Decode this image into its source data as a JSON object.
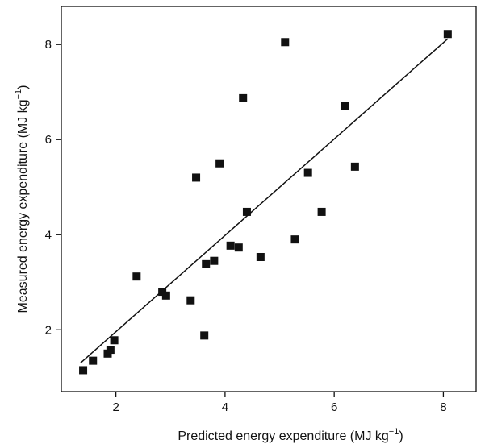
{
  "chart_data": {
    "type": "scatter",
    "title": "",
    "xlabel": "Predicted energy expenditure (MJ kg",
    "xlabel_sup": "−1",
    "xlabel_tail": ")",
    "ylabel": "Measured energy expenditure (MJ kg",
    "ylabel_sup": "−1",
    "ylabel_tail": ")",
    "xlim": [
      1.0,
      8.6
    ],
    "ylim": [
      0.7,
      8.8
    ],
    "xticks": [
      2,
      4,
      6,
      8
    ],
    "yticks": [
      2,
      4,
      6,
      8
    ],
    "grid": false,
    "marker": "square",
    "colors": {
      "marker": "#111111",
      "line": "#111111",
      "axis": "#111111"
    },
    "points": [
      {
        "x": 1.4,
        "y": 1.15
      },
      {
        "x": 1.58,
        "y": 1.35
      },
      {
        "x": 1.85,
        "y": 1.5
      },
      {
        "x": 1.9,
        "y": 1.58
      },
      {
        "x": 1.97,
        "y": 1.78
      },
      {
        "x": 2.38,
        "y": 3.12
      },
      {
        "x": 2.85,
        "y": 2.8
      },
      {
        "x": 2.92,
        "y": 2.72
      },
      {
        "x": 3.37,
        "y": 2.62
      },
      {
        "x": 3.47,
        "y": 5.2
      },
      {
        "x": 3.62,
        "y": 1.88
      },
      {
        "x": 3.65,
        "y": 3.38
      },
      {
        "x": 3.8,
        "y": 3.45
      },
      {
        "x": 3.9,
        "y": 5.5
      },
      {
        "x": 4.1,
        "y": 3.77
      },
      {
        "x": 4.25,
        "y": 3.73
      },
      {
        "x": 4.33,
        "y": 6.87
      },
      {
        "x": 4.4,
        "y": 4.48
      },
      {
        "x": 4.65,
        "y": 3.53
      },
      {
        "x": 5.1,
        "y": 8.05
      },
      {
        "x": 5.28,
        "y": 3.9
      },
      {
        "x": 5.52,
        "y": 5.3
      },
      {
        "x": 5.77,
        "y": 4.48
      },
      {
        "x": 6.2,
        "y": 6.7
      },
      {
        "x": 6.38,
        "y": 5.43
      },
      {
        "x": 8.08,
        "y": 8.22
      }
    ],
    "trend_line": {
      "x": [
        1.35,
        8.08
      ],
      "y": [
        1.3,
        8.12
      ]
    }
  }
}
